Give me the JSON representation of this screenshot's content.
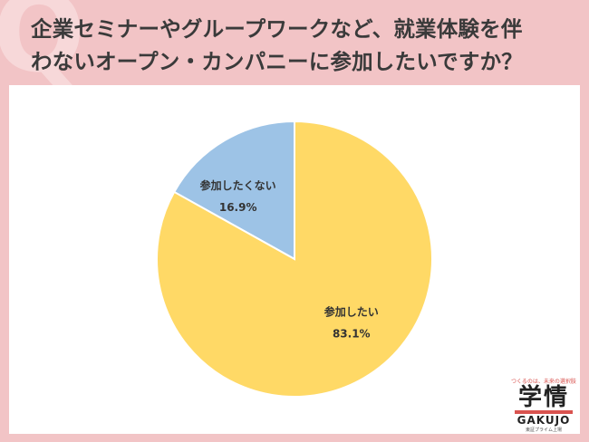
{
  "header": {
    "title_line1": "企業セミナーやグループワークなど、就業体験を伴",
    "title_line2": "わないオープン・カンパニーに参加したいですか？"
  },
  "colors": {
    "background": "#f2c4c6",
    "slice_yes": "#ffd966",
    "slice_no": "#9dc3e6"
  },
  "chart_data": {
    "type": "pie",
    "title": "企業セミナーやグループワークなど、就業体験を伴わないオープン・カンパニーに参加したいですか？",
    "slices": [
      {
        "label": "参加したくない",
        "value": 16.9,
        "value_label": "16.9%",
        "color": "#9dc3e6"
      },
      {
        "label": "参加したい",
        "value": 83.1,
        "value_label": "83.1%",
        "color": "#ffd966"
      }
    ]
  },
  "logo": {
    "tagline": "つくるのは、未来の選択肢",
    "kanji": "学情",
    "english": "GAKUJO",
    "sub": "東証プライム上場"
  }
}
